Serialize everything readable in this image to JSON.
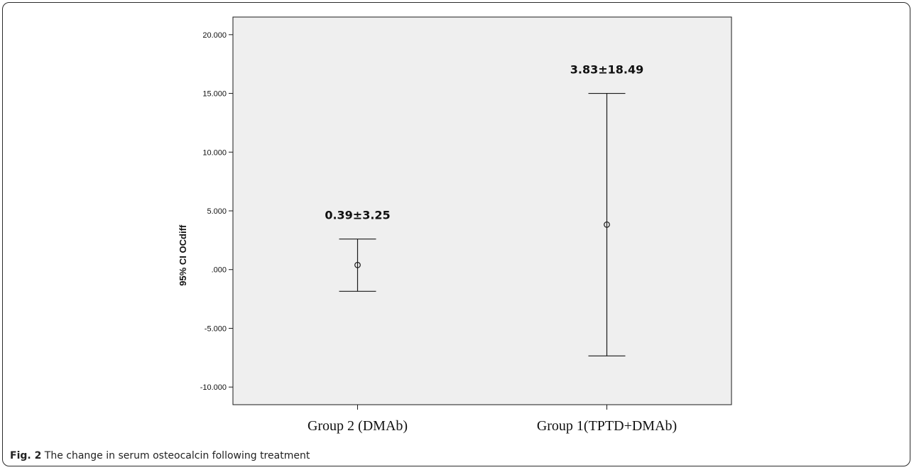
{
  "chart_data": {
    "type": "errorbar",
    "categories": [
      "Group 2 (DMAb)",
      "Group 1(TPTD+DMAb)"
    ],
    "means": [
      0.39,
      3.83
    ],
    "ci_lower": [
      -1.85,
      -7.35
    ],
    "ci_upper": [
      2.6,
      15.0
    ],
    "annotations": [
      "0.39±3.25",
      "3.83±18.49"
    ],
    "ylabel": "95% CI OCdiff",
    "ylim": [
      -11.5,
      21.5
    ],
    "yticks": [
      -10,
      -5,
      0,
      5,
      10,
      15,
      20
    ],
    "ytick_labels": [
      "-10.000",
      "-5.000",
      ".000",
      "5.000",
      "10.000",
      "15.000",
      "20.000"
    ],
    "grid": false,
    "plot_background": "#efefef",
    "line_color": "#1a1a1a"
  },
  "caption": {
    "label": "Fig. 2",
    "text": "The change in serum osteocalcin following treatment"
  }
}
